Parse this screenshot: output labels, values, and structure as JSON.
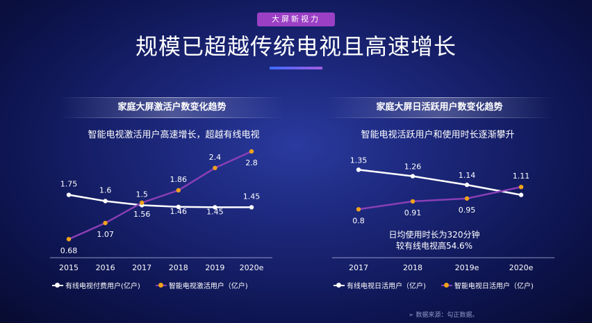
{
  "tag": "大屏新视力",
  "title": "规模已超越传统电视且高速增长",
  "panels": [
    {
      "header": "家庭大屏激活户数变化趋势",
      "subtitle": "智能电视激活用户高速增长，超越有线电视",
      "legend": [
        "有线电视付费用户(亿户)",
        "智能电视激活用户（亿户)"
      ]
    },
    {
      "header": "家庭大屏日活跃用户数变化趋势",
      "subtitle": "智能电视活跃用户和使用时长逐渐攀升",
      "legend": [
        "有线电视日活用户（亿户)",
        "智能电视日活用户（亿户)"
      ],
      "note": [
        "日均使用时长为320分钟",
        "较有线电视高54.6%"
      ]
    }
  ],
  "source": "数据来源：勾正数据。",
  "colors": {
    "white_series": "#ffffff",
    "purple_series": "#8a3fb5",
    "marker": "#f2a21c"
  },
  "chart_data": [
    {
      "type": "line",
      "title": "家庭大屏激活户数变化趋势",
      "categories": [
        "2015",
        "2016",
        "2017",
        "2018",
        "2019",
        "2020e"
      ],
      "series": [
        {
          "name": "有线电视付费用户(亿户)",
          "values": [
            1.75,
            1.6,
            1.5,
            1.46,
            1.45,
            1.45
          ],
          "labels": [
            "1.75",
            "1.6",
            "1.5",
            "1.46",
            "1.45",
            "1.45"
          ]
        },
        {
          "name": "智能电视激活用户（亿户)",
          "values": [
            0.68,
            1.07,
            1.56,
            1.86,
            2.4,
            2.8
          ],
          "labels": [
            "0.68",
            "1.07",
            "1.56",
            "1.86",
            "2.4",
            "2.8"
          ]
        }
      ],
      "ylim": [
        0.5,
        2.9
      ],
      "grid": false,
      "legend_position": "bottom"
    },
    {
      "type": "line",
      "title": "家庭大屏日活跃用户数变化趋势",
      "categories": [
        "2017",
        "2018",
        "2019e",
        "2020e"
      ],
      "series": [
        {
          "name": "有线电视日活用户（亿户)",
          "values": [
            1.35,
            1.26,
            1.14,
            1.0
          ],
          "labels": [
            "1.35",
            "1.26",
            "1.14",
            ""
          ]
        },
        {
          "name": "智能电视日活用户（亿户)",
          "values": [
            0.8,
            0.91,
            0.95,
            1.11
          ],
          "labels": [
            "0.8",
            "0.91",
            "0.95",
            "1.11"
          ]
        }
      ],
      "ylim": [
        0.6,
        1.45
      ],
      "grid": false,
      "legend_position": "bottom"
    }
  ]
}
